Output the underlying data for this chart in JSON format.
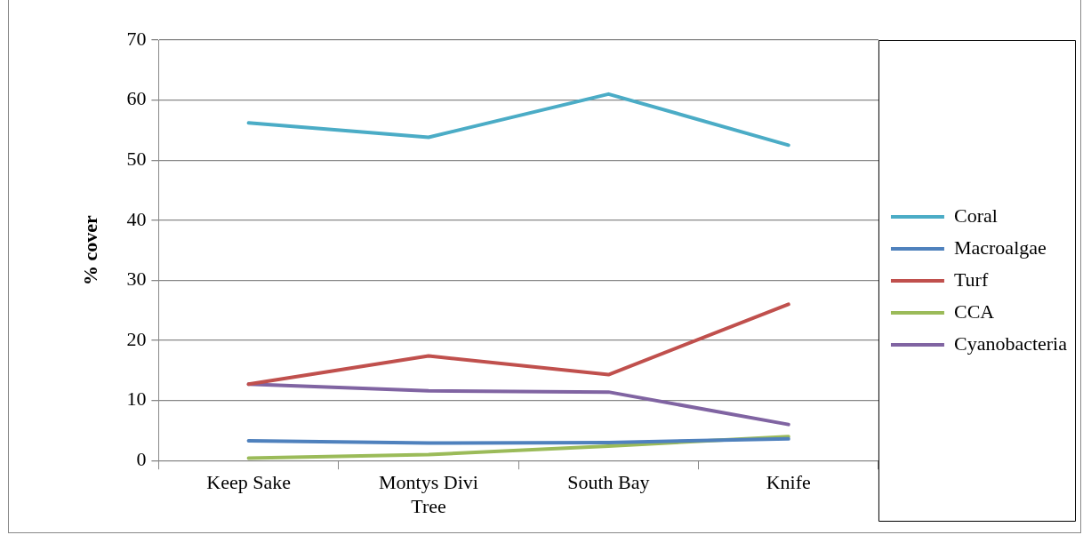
{
  "chart_data": {
    "type": "line",
    "ylabel": "% cover",
    "categories": [
      "Keep Sake",
      "Montys Divi Tree",
      "South Bay",
      "Knife"
    ],
    "series": [
      {
        "name": "Coral",
        "color": "#4bacc6",
        "values": [
          56.2,
          53.8,
          61.0,
          52.5
        ]
      },
      {
        "name": "Macroalgae",
        "color": "#4f81bd",
        "values": [
          3.3,
          2.9,
          3.0,
          3.6
        ]
      },
      {
        "name": "Turf",
        "color": "#c0504d",
        "values": [
          12.7,
          17.4,
          14.3,
          26.0
        ]
      },
      {
        "name": "CCA",
        "color": "#9bbb59",
        "values": [
          0.4,
          1.0,
          2.4,
          4.0
        ]
      },
      {
        "name": "Cyanobacteria",
        "color": "#8064a2",
        "values": [
          12.7,
          11.6,
          11.4,
          6.0
        ]
      }
    ],
    "ylim": [
      0,
      70
    ],
    "yticks": [
      0,
      10,
      20,
      30,
      40,
      50,
      60,
      70
    ],
    "grid": "y",
    "legend": "right",
    "marker": "none",
    "line_style": "solid"
  }
}
